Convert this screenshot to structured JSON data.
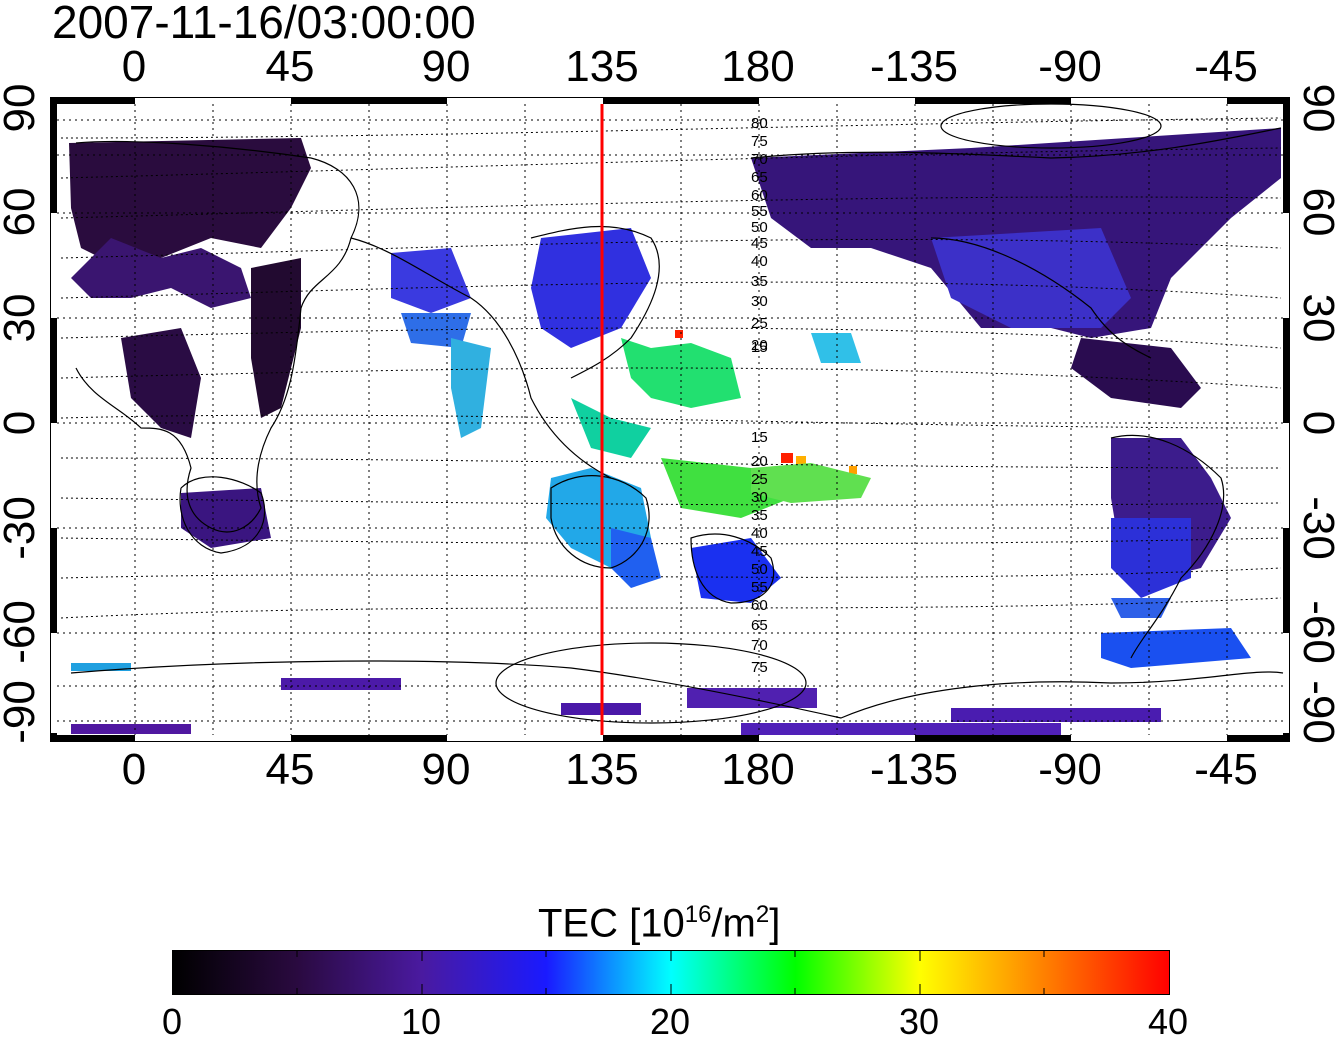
{
  "title": "2007-11-16/03:00:00",
  "lon_ticks": [
    "0",
    "45",
    "90",
    "135",
    "180",
    "-135",
    "-90",
    "-45"
  ],
  "lat_ticks_left": [
    "90",
    "60",
    "30",
    "0",
    "-30",
    "-60",
    "-90"
  ],
  "lat_ticks_right": [
    "90",
    "60",
    "30",
    "0",
    "-30",
    "-60",
    "-90"
  ],
  "map": {
    "type": "heatmap",
    "lon_range": [
      -25,
      330
    ],
    "lat_range": [
      -92,
      92
    ],
    "lon_axis_labels": [
      "0",
      "45",
      "90",
      "135",
      "180",
      "-135",
      "-90",
      "-45"
    ],
    "lat_axis_labels": [
      "90",
      "60",
      "30",
      "0",
      "-30",
      "-60",
      "-90"
    ],
    "grid": "dotted",
    "meridian_marker_lon": 135,
    "meridian_marker_color": "#ff0000",
    "magnetic_latitude_labels_north": [
      "80",
      "75",
      "70",
      "65",
      "60",
      "55",
      "50",
      "45",
      "40",
      "35",
      "30",
      "25",
      "20",
      "15"
    ],
    "magnetic_latitude_labels_south": [
      "15",
      "20",
      "25",
      "30",
      "35",
      "40",
      "45",
      "50",
      "55",
      "60",
      "65",
      "70",
      "75"
    ]
  },
  "colorbar": {
    "title_main": "TEC  [10",
    "title_exp": "16",
    "title_unit": "/m",
    "title_unit_exp": "2",
    "title_close": "]",
    "min": 0,
    "max": 40,
    "labels": [
      "0",
      "10",
      "20",
      "30",
      "40"
    ],
    "colors": [
      "#000000",
      "#2a0a40",
      "#4a1aa0",
      "#1a1aff",
      "#00ffff",
      "#00ff00",
      "#ffff00",
      "#ff8000",
      "#ff0000"
    ]
  }
}
